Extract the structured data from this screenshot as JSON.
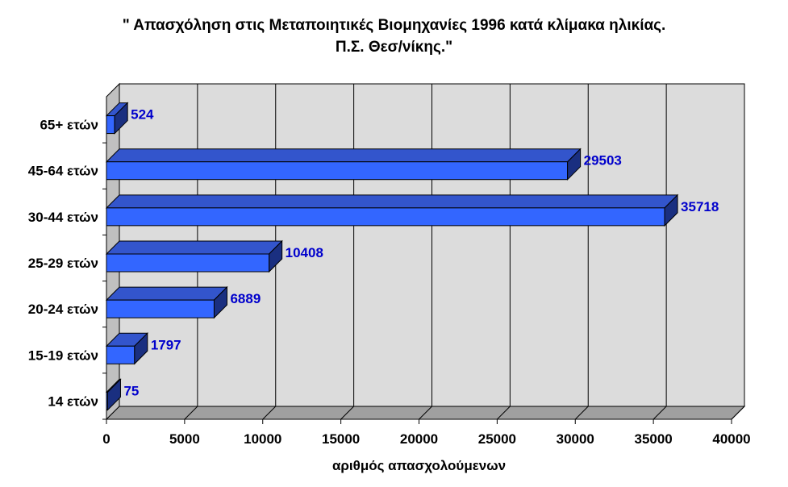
{
  "chart_data": {
    "type": "bar",
    "orientation": "horizontal",
    "title_line1": "\" Απασχόληση στις Μεταποιητικές Βιομηχανίες 1996 κατά κλίμακα ηλικίας.",
    "title_line2": "Π.Σ. Θεσ/νίκης.\"",
    "xlabel": "αριθμός απασχολούμενων",
    "ylabel": "",
    "categories": [
      "14 ετών",
      "15-19  ετών",
      "20-24  ετών",
      "25-29  ετών",
      "30-44  ετών",
      "45-64  ετών",
      "65+  ετών"
    ],
    "values": [
      75,
      1797,
      6889,
      10408,
      35718,
      29503,
      524
    ],
    "data_labels": [
      "75",
      "1797",
      "6889",
      "10408",
      "35718",
      "29503",
      "524"
    ],
    "xlim": [
      0,
      40000
    ],
    "xticks": [
      0,
      5000,
      10000,
      15000,
      20000,
      25000,
      30000,
      35000,
      40000
    ],
    "xtick_labels": [
      "0",
      "5000",
      "10000",
      "15000",
      "20000",
      "25000",
      "30000",
      "35000",
      "40000"
    ],
    "grid": true,
    "legend": "none",
    "colors": {
      "bar_front": "#3366ff",
      "bar_top": "#3355cc",
      "bar_side": "#1a2f80",
      "data_label": "#0000cc",
      "plot_back": "#dcdcdc",
      "plot_floor": "#a0a0a0"
    }
  }
}
